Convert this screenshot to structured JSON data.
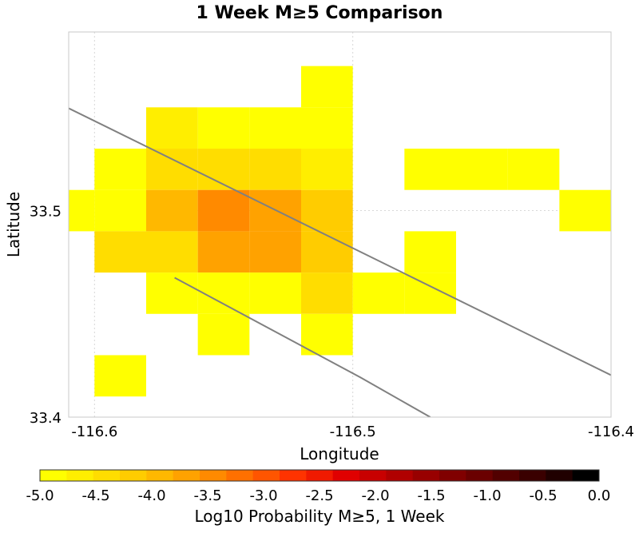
{
  "chart_data": {
    "type": "heatmap",
    "title": "1 Week M≥5 Comparison",
    "xlabel": "Longitude",
    "ylabel": "Latitude",
    "xlim": [
      -116.61,
      -116.4
    ],
    "ylim": [
      33.4,
      33.5865
    ],
    "x_ticks": [
      {
        "value": -116.6,
        "label": "-116.6"
      },
      {
        "value": -116.5,
        "label": "-116.5"
      },
      {
        "value": -116.4,
        "label": "-116.4"
      }
    ],
    "y_ticks": [
      {
        "value": 33.4,
        "label": "33.4"
      },
      {
        "value": 33.5,
        "label": "33.5"
      }
    ],
    "grid": true,
    "cell_size_deg": 0.02,
    "cells": [
      {
        "lon": -116.51,
        "lat": 33.56,
        "value": -4.9
      },
      {
        "lon": -116.57,
        "lat": 33.54,
        "value": -4.6
      },
      {
        "lon": -116.55,
        "lat": 33.54,
        "value": -4.8
      },
      {
        "lon": -116.53,
        "lat": 33.54,
        "value": -4.8
      },
      {
        "lon": -116.51,
        "lat": 33.54,
        "value": -4.8
      },
      {
        "lon": -116.59,
        "lat": 33.52,
        "value": -4.9
      },
      {
        "lon": -116.57,
        "lat": 33.52,
        "value": -4.3
      },
      {
        "lon": -116.55,
        "lat": 33.52,
        "value": -4.3
      },
      {
        "lon": -116.53,
        "lat": 33.52,
        "value": -4.3
      },
      {
        "lon": -116.51,
        "lat": 33.52,
        "value": -4.6
      },
      {
        "lon": -116.47,
        "lat": 33.52,
        "value": -4.9
      },
      {
        "lon": -116.45,
        "lat": 33.52,
        "value": -4.9
      },
      {
        "lon": -116.43,
        "lat": 33.52,
        "value": -4.9
      },
      {
        "lon": -116.63,
        "lat": 33.5,
        "value": -4.9
      },
      {
        "lon": -116.61,
        "lat": 33.5,
        "value": -4.9
      },
      {
        "lon": -116.59,
        "lat": 33.5,
        "value": -4.9
      },
      {
        "lon": -116.57,
        "lat": 33.5,
        "value": -4.0
      },
      {
        "lon": -116.55,
        "lat": 33.5,
        "value": -3.3
      },
      {
        "lon": -116.53,
        "lat": 33.5,
        "value": -3.6
      },
      {
        "lon": -116.51,
        "lat": 33.5,
        "value": -4.2
      },
      {
        "lon": -116.41,
        "lat": 33.5,
        "value": -4.9
      },
      {
        "lon": -116.59,
        "lat": 33.48,
        "value": -4.3
      },
      {
        "lon": -116.57,
        "lat": 33.48,
        "value": -4.3
      },
      {
        "lon": -116.55,
        "lat": 33.48,
        "value": -3.6
      },
      {
        "lon": -116.53,
        "lat": 33.48,
        "value": -3.6
      },
      {
        "lon": -116.51,
        "lat": 33.48,
        "value": -4.2
      },
      {
        "lon": -116.47,
        "lat": 33.48,
        "value": -4.8
      },
      {
        "lon": -116.57,
        "lat": 33.46,
        "value": -4.8
      },
      {
        "lon": -116.55,
        "lat": 33.46,
        "value": -4.8
      },
      {
        "lon": -116.53,
        "lat": 33.46,
        "value": -4.8
      },
      {
        "lon": -116.51,
        "lat": 33.46,
        "value": -4.4
      },
      {
        "lon": -116.49,
        "lat": 33.46,
        "value": -4.8
      },
      {
        "lon": -116.47,
        "lat": 33.46,
        "value": -4.9
      },
      {
        "lon": -116.55,
        "lat": 33.44,
        "value": -4.9
      },
      {
        "lon": -116.51,
        "lat": 33.44,
        "value": -4.9
      },
      {
        "lon": -116.59,
        "lat": 33.42,
        "value": -4.9
      }
    ],
    "fault_lines": [
      [
        [
          -116.612,
          33.5508
        ],
        [
          -116.4,
          33.4203
        ]
      ],
      [
        [
          -116.569,
          33.4675
        ],
        [
          -116.497,
          33.4192
        ],
        [
          -116.47,
          33.4
        ]
      ]
    ],
    "colorbar": {
      "label": "Log10 Probability M≥5, 1 Week",
      "range": [
        -5.0,
        0.0
      ],
      "ticks": [
        "-5.0",
        "-4.5",
        "-4.0",
        "-3.5",
        "-3.0",
        "-2.5",
        "-2.0",
        "-1.5",
        "-1.0",
        "-0.5",
        "0.0"
      ],
      "colors": [
        "#ffff00",
        "#ffee00",
        "#ffdd00",
        "#ffcc00",
        "#ffb800",
        "#ffa200",
        "#ff8a00",
        "#ff7000",
        "#ff5500",
        "#ff3300",
        "#f01a00",
        "#e00000",
        "#c80000",
        "#b00000",
        "#980000",
        "#800000",
        "#6a0000",
        "#520000",
        "#3a0000",
        "#200000",
        "#000000"
      ]
    }
  }
}
